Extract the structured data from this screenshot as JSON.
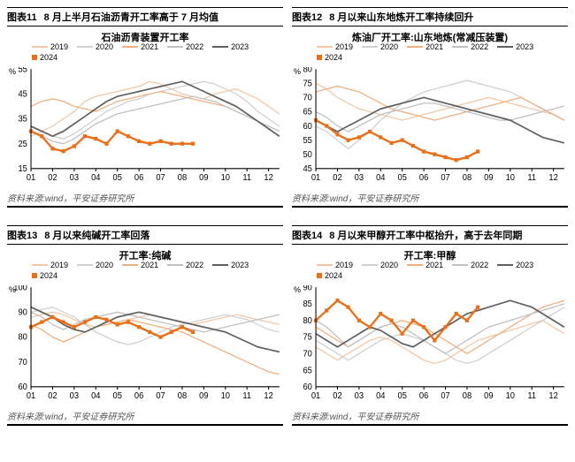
{
  "colors": {
    "y2019": "#f3c7a5",
    "y2020": "#d0d0d0",
    "y2021": "#f0b080",
    "y2022": "#c0c0c0",
    "y2023": "#606060",
    "y2024": "#e8701a",
    "axis": "#000000",
    "bg": "#ffffff"
  },
  "x_ticks": [
    "01",
    "02",
    "03",
    "04",
    "05",
    "06",
    "07",
    "08",
    "09",
    "10",
    "11",
    "12"
  ],
  "series_labels": {
    "y2019": "2019",
    "y2020": "2020",
    "y2021": "2021",
    "y2022": "2022",
    "y2023": "2023",
    "y2024": "2024"
  },
  "source_text": "资料来源:wind，平安证券研究所",
  "y_unit": "%",
  "panels": [
    {
      "id": "p11",
      "num": "图表11",
      "header": "8 月上半月石油沥青开工率高于 7 月均值",
      "chart_title": "石油沥青装置开工率",
      "ylim": [
        15,
        55
      ],
      "ytick_step": 10,
      "series": {
        "y2019": [
          28,
          30,
          32,
          35,
          38,
          42,
          44,
          45,
          46,
          47,
          48,
          50,
          49,
          47,
          45,
          44,
          43,
          45,
          46,
          47,
          45,
          43,
          40,
          37
        ],
        "y2020": [
          32,
          30,
          28,
          27,
          29,
          32,
          35,
          38,
          40,
          42,
          43,
          45,
          46,
          47,
          48,
          49,
          50,
          49,
          47,
          45,
          42,
          38,
          35,
          32
        ],
        "y2021": [
          40,
          42,
          43,
          42,
          40,
          39,
          38,
          40,
          42,
          43,
          44,
          45,
          46,
          45,
          44,
          43,
          42,
          41,
          40,
          38,
          36,
          34,
          32,
          30
        ],
        "y2022": [
          30,
          28,
          26,
          25,
          27,
          30,
          33,
          35,
          37,
          38,
          39,
          40,
          41,
          42,
          43,
          44,
          43,
          42,
          40,
          38,
          36,
          34,
          32,
          30
        ],
        "y2023": [
          32,
          30,
          28,
          30,
          33,
          36,
          39,
          42,
          44,
          45,
          46,
          47,
          48,
          49,
          50,
          48,
          46,
          44,
          42,
          40,
          37,
          34,
          31,
          28
        ],
        "y2024": [
          30,
          28,
          23,
          22,
          24,
          28,
          27,
          25,
          30,
          28,
          26,
          25,
          26,
          25,
          25,
          25
        ]
      }
    },
    {
      "id": "p12",
      "num": "图表12",
      "header": "8 月以来山东地炼开工率持续回升",
      "chart_title": "炼油厂开工率:山东地炼(常减压装置)",
      "ylim": [
        45,
        80
      ],
      "ytick_step": 5,
      "series": {
        "y2019": [
          75,
          73,
          70,
          68,
          66,
          65,
          64,
          63,
          62,
          63,
          64,
          65,
          66,
          67,
          68,
          69,
          70,
          69,
          68,
          67,
          66,
          65,
          64,
          62
        ],
        "y2020": [
          60,
          58,
          55,
          52,
          55,
          58,
          62,
          65,
          68,
          70,
          72,
          73,
          74,
          75,
          76,
          75,
          74,
          73,
          72,
          70,
          68,
          66,
          64,
          62
        ],
        "y2021": [
          72,
          73,
          74,
          73,
          72,
          70,
          68,
          66,
          65,
          64,
          63,
          62,
          63,
          64,
          65,
          66,
          67,
          68,
          69,
          70,
          68,
          66,
          64,
          62
        ],
        "y2022": [
          65,
          63,
          60,
          58,
          60,
          62,
          64,
          65,
          66,
          67,
          68,
          68,
          67,
          66,
          65,
          64,
          63,
          62,
          62,
          63,
          64,
          65,
          66,
          67
        ],
        "y2023": [
          62,
          60,
          58,
          60,
          62,
          64,
          66,
          67,
          68,
          69,
          70,
          69,
          68,
          67,
          66,
          65,
          64,
          63,
          62,
          60,
          58,
          56,
          55,
          54
        ],
        "y2024": [
          62,
          60,
          57,
          55,
          56,
          58,
          56,
          54,
          55,
          53,
          51,
          50,
          49,
          48,
          49,
          51
        ]
      }
    },
    {
      "id": "p13",
      "num": "图表13",
      "header": "8 月以来纯碱开工率回落",
      "chart_title": "开工率:纯碱",
      "ylim": [
        60,
        100
      ],
      "ytick_step": 10,
      "series": {
        "y2019": [
          88,
          89,
          90,
          89,
          87,
          85,
          84,
          85,
          86,
          87,
          88,
          89,
          88,
          87,
          86,
          85,
          86,
          87,
          88,
          89,
          88,
          87,
          86,
          85
        ],
        "y2020": [
          90,
          91,
          92,
          90,
          88,
          85,
          82,
          80,
          78,
          77,
          78,
          80,
          82,
          84,
          85,
          86,
          87,
          88,
          89,
          88,
          87,
          85,
          83,
          82
        ],
        "y2021": [
          85,
          83,
          80,
          78,
          80,
          82,
          84,
          85,
          86,
          87,
          86,
          85,
          84,
          83,
          82,
          80,
          78,
          76,
          74,
          72,
          70,
          68,
          66,
          65
        ],
        "y2022": [
          90,
          88,
          85,
          83,
          85,
          87,
          88,
          89,
          90,
          89,
          88,
          87,
          86,
          85,
          84,
          83,
          82,
          83,
          84,
          85,
          86,
          87,
          88,
          89
        ],
        "y2023": [
          92,
          90,
          88,
          85,
          83,
          82,
          84,
          86,
          88,
          89,
          90,
          89,
          88,
          87,
          86,
          85,
          84,
          83,
          82,
          80,
          78,
          76,
          75,
          74
        ],
        "y2024": [
          84,
          86,
          88,
          86,
          84,
          86,
          88,
          87,
          85,
          86,
          84,
          82,
          80,
          82,
          84,
          82
        ]
      }
    },
    {
      "id": "p14",
      "num": "图表14",
      "header": "8 月以来甲醇开工率中枢抬升，高于去年同期",
      "chart_title": "开工率:甲醇",
      "ylim": [
        60,
        90
      ],
      "ytick_step": 5,
      "series": {
        "y2019": [
          72,
          70,
          68,
          70,
          72,
          74,
          75,
          74,
          72,
          70,
          68,
          67,
          68,
          70,
          72,
          74,
          75,
          76,
          77,
          78,
          79,
          80,
          78,
          76
        ],
        "y2020": [
          74,
          72,
          70,
          68,
          70,
          72,
          74,
          75,
          76,
          75,
          74,
          72,
          70,
          68,
          67,
          68,
          70,
          72,
          74,
          76,
          78,
          80,
          82,
          84
        ],
        "y2021": [
          78,
          76,
          74,
          72,
          74,
          76,
          78,
          79,
          80,
          79,
          78,
          76,
          74,
          72,
          70,
          72,
          74,
          76,
          78,
          80,
          82,
          84,
          85,
          86
        ],
        "y2022": [
          80,
          78,
          75,
          72,
          74,
          76,
          78,
          79,
          78,
          76,
          74,
          72,
          70,
          72,
          74,
          76,
          78,
          79,
          80,
          81,
          82,
          83,
          84,
          85
        ],
        "y2023": [
          76,
          74,
          72,
          74,
          76,
          78,
          77,
          75,
          73,
          72,
          74,
          76,
          78,
          80,
          82,
          83,
          84,
          85,
          86,
          85,
          84,
          82,
          80,
          78
        ],
        "y2024": [
          80,
          83,
          86,
          84,
          80,
          78,
          82,
          80,
          76,
          80,
          78,
          74,
          78,
          82,
          80,
          84
        ]
      }
    }
  ]
}
